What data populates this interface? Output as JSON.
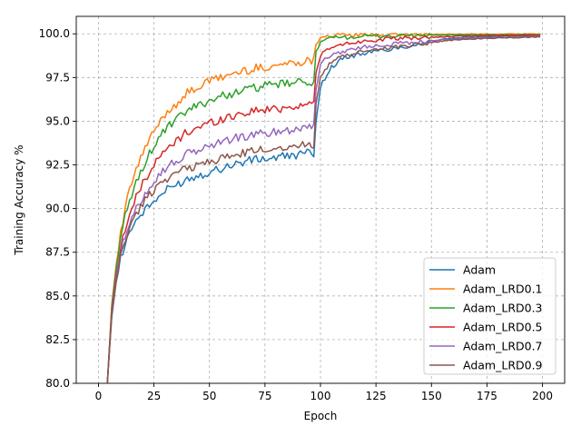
{
  "chart_data": {
    "type": "line",
    "title": "",
    "xlabel": "Epoch",
    "ylabel": "Training Accuracy %",
    "xlim": [
      -10,
      210
    ],
    "ylim": [
      80,
      101
    ],
    "xticks": [
      0,
      25,
      50,
      75,
      100,
      125,
      150,
      175,
      200
    ],
    "yticks": [
      80.0,
      82.5,
      85.0,
      87.5,
      90.0,
      92.5,
      95.0,
      97.5,
      100.0
    ],
    "xtick_labels": [
      "0",
      "25",
      "50",
      "75",
      "100",
      "125",
      "150",
      "175",
      "200"
    ],
    "ytick_labels": [
      "80.0",
      "82.5",
      "85.0",
      "87.5",
      "90.0",
      "92.5",
      "95.0",
      "97.5",
      "100.0"
    ],
    "grid": true,
    "legend_position": "bottom-right",
    "series": [
      {
        "name": "Adam",
        "color": "#1f77b4",
        "x": [
          4,
          5,
          6,
          8,
          10,
          12,
          15,
          20,
          25,
          30,
          40,
          50,
          60,
          70,
          80,
          90,
          97,
          98,
          100,
          105,
          110,
          120,
          130,
          140,
          150,
          160,
          175,
          199
        ],
        "y": [
          80.0,
          82.0,
          83.8,
          85.8,
          87.2,
          88.0,
          89.0,
          89.8,
          90.4,
          91.0,
          91.7,
          92.1,
          92.5,
          92.8,
          92.9,
          93.1,
          93.2,
          95.0,
          97.0,
          98.1,
          98.6,
          98.9,
          99.1,
          99.3,
          99.6,
          99.75,
          99.85,
          99.9
        ]
      },
      {
        "name": "Adam_LRD0.1",
        "color": "#ff7f0e",
        "x": [
          4,
          5,
          6,
          8,
          10,
          12,
          15,
          20,
          25,
          30,
          40,
          50,
          60,
          70,
          80,
          90,
          97,
          98,
          100,
          105,
          110,
          120,
          130,
          140,
          150,
          160,
          175,
          199
        ],
        "y": [
          80.0,
          82.2,
          84.5,
          86.8,
          88.5,
          90.0,
          91.5,
          93.2,
          94.4,
          95.4,
          96.6,
          97.3,
          97.7,
          98.0,
          98.2,
          98.4,
          98.5,
          99.4,
          99.85,
          99.9,
          99.92,
          99.94,
          99.95,
          99.96,
          99.97,
          99.98,
          99.98,
          99.99
        ]
      },
      {
        "name": "Adam_LRD0.3",
        "color": "#2ca02c",
        "x": [
          4,
          5,
          6,
          8,
          10,
          12,
          15,
          20,
          25,
          30,
          40,
          50,
          60,
          70,
          80,
          90,
          97,
          98,
          100,
          105,
          110,
          120,
          130,
          140,
          150,
          160,
          175,
          199
        ],
        "y": [
          80.0,
          82.2,
          84.4,
          86.6,
          88.2,
          89.5,
          90.8,
          92.4,
          93.6,
          94.5,
          95.6,
          96.2,
          96.6,
          96.9,
          97.1,
          97.2,
          97.3,
          98.9,
          99.5,
          99.75,
          99.8,
          99.85,
          99.88,
          99.9,
          99.92,
          99.93,
          99.95,
          99.96
        ]
      },
      {
        "name": "Adam_LRD0.5",
        "color": "#d62728",
        "x": [
          4,
          5,
          6,
          8,
          10,
          12,
          15,
          20,
          25,
          30,
          40,
          50,
          60,
          70,
          80,
          90,
          97,
          98,
          100,
          105,
          110,
          120,
          130,
          140,
          150,
          160,
          175,
          199
        ],
        "y": [
          80.0,
          82.1,
          84.2,
          86.3,
          87.8,
          88.8,
          90.0,
          91.5,
          92.5,
          93.3,
          94.4,
          94.9,
          95.3,
          95.6,
          95.7,
          95.9,
          96.0,
          97.8,
          98.8,
          99.2,
          99.4,
          99.6,
          99.7,
          99.75,
          99.8,
          99.85,
          99.9,
          99.92
        ]
      },
      {
        "name": "Adam_LRD0.7",
        "color": "#9467bd",
        "x": [
          4,
          5,
          6,
          8,
          10,
          12,
          15,
          20,
          25,
          30,
          40,
          50,
          60,
          70,
          80,
          90,
          97,
          98,
          100,
          105,
          110,
          120,
          130,
          140,
          150,
          160,
          175,
          199
        ],
        "y": [
          80.0,
          82.0,
          84.0,
          86.1,
          87.5,
          88.4,
          89.4,
          90.7,
          91.6,
          92.3,
          93.1,
          93.6,
          94.0,
          94.2,
          94.4,
          94.6,
          94.8,
          96.8,
          98.3,
          98.8,
          99.0,
          99.25,
          99.4,
          99.5,
          99.6,
          99.7,
          99.78,
          99.85
        ]
      },
      {
        "name": "Adam_LRD0.9",
        "color": "#8c564b",
        "x": [
          4,
          5,
          6,
          8,
          10,
          12,
          15,
          20,
          25,
          30,
          40,
          50,
          60,
          70,
          80,
          90,
          97,
          98,
          100,
          105,
          110,
          120,
          130,
          140,
          150,
          160,
          175,
          199
        ],
        "y": [
          80.0,
          82.0,
          83.9,
          85.9,
          87.3,
          88.2,
          89.2,
          90.3,
          91.1,
          91.7,
          92.3,
          92.7,
          93.0,
          93.3,
          93.5,
          93.6,
          93.7,
          96.0,
          97.6,
          98.4,
          98.7,
          99.0,
          99.2,
          99.35,
          99.5,
          99.65,
          99.75,
          99.82
        ]
      }
    ]
  }
}
